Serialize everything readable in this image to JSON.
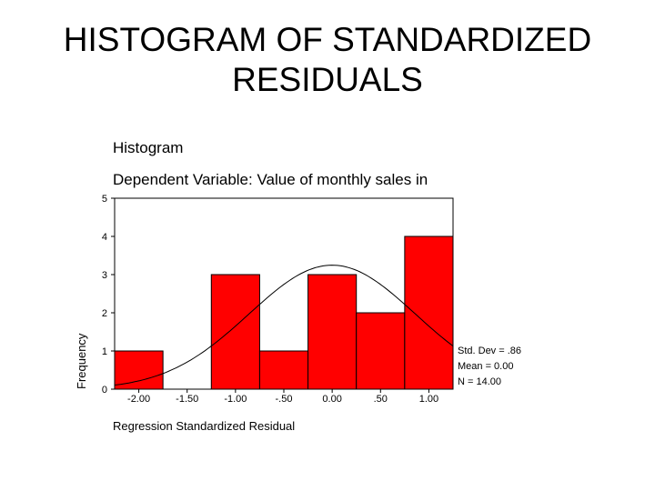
{
  "slide": {
    "title_line1": "HISTOGRAM OF STANDARDIZED",
    "title_line2": "RESIDUALS"
  },
  "chart_data": {
    "type": "bar",
    "title": "Histogram",
    "subtitle": "Dependent Variable: Value of monthly sales in",
    "xlabel": "Regression Standardized Residual",
    "ylabel": "Frequency",
    "categories": [
      "-2.00",
      "-1.50",
      "-1.00",
      "-.50",
      "0.00",
      ".50",
      "1.00"
    ],
    "bins": [
      {
        "center": -2.0,
        "count": 1
      },
      {
        "center": -1.5,
        "count": 0
      },
      {
        "center": -1.0,
        "count": 3
      },
      {
        "center": -0.5,
        "count": 1
      },
      {
        "center": 0.0,
        "count": 3
      },
      {
        "center": 0.5,
        "count": 2
      },
      {
        "center": 1.0,
        "count": 4
      }
    ],
    "bin_width": 0.5,
    "xlim": [
      -2.25,
      1.25
    ],
    "ylim": [
      0,
      5
    ],
    "yticks": [
      0,
      1,
      2,
      3,
      4,
      5
    ],
    "bar_color": "#ff0000",
    "normal_curve": {
      "mean": 0.0,
      "std": 0.86,
      "n": 14
    },
    "stats": {
      "std_dev": "Std. Dev = .86",
      "mean": "Mean = 0.00",
      "n": "N = 14.00"
    },
    "grid": false
  }
}
